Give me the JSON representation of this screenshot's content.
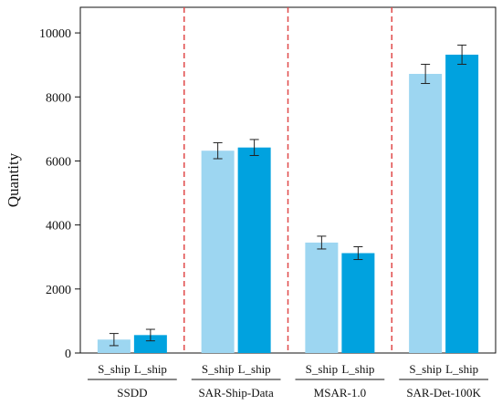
{
  "chart_data": {
    "type": "bar",
    "ylabel": "Quantity",
    "ylim": [
      0,
      10800
    ],
    "yticks": [
      0,
      2000,
      4000,
      6000,
      8000,
      10000
    ],
    "grid": false,
    "group_separators": "dashed red vertical lines",
    "groups": [
      {
        "name": "SSDD",
        "bars": [
          {
            "label": "S_ship",
            "value": 420,
            "error": 190
          },
          {
            "label": "L_ship",
            "value": 560,
            "error": 180
          }
        ]
      },
      {
        "name": "SAR-Ship-Data",
        "bars": [
          {
            "label": "S_ship",
            "value": 6320,
            "error": 250
          },
          {
            "label": "L_ship",
            "value": 6420,
            "error": 250
          }
        ]
      },
      {
        "name": "MSAR-1.0",
        "bars": [
          {
            "label": "S_ship",
            "value": 3450,
            "error": 200
          },
          {
            "label": "L_ship",
            "value": 3120,
            "error": 200
          }
        ]
      },
      {
        "name": "SAR-Det-100K",
        "bars": [
          {
            "label": "S_ship",
            "value": 8720,
            "error": 300
          },
          {
            "label": "L_ship",
            "value": 9320,
            "error": 300
          }
        ]
      }
    ],
    "colors": {
      "S_ship": "#9dd6f1",
      "L_ship": "#00a2df",
      "separator": "#e04a4a",
      "axis": "#111111"
    }
  }
}
